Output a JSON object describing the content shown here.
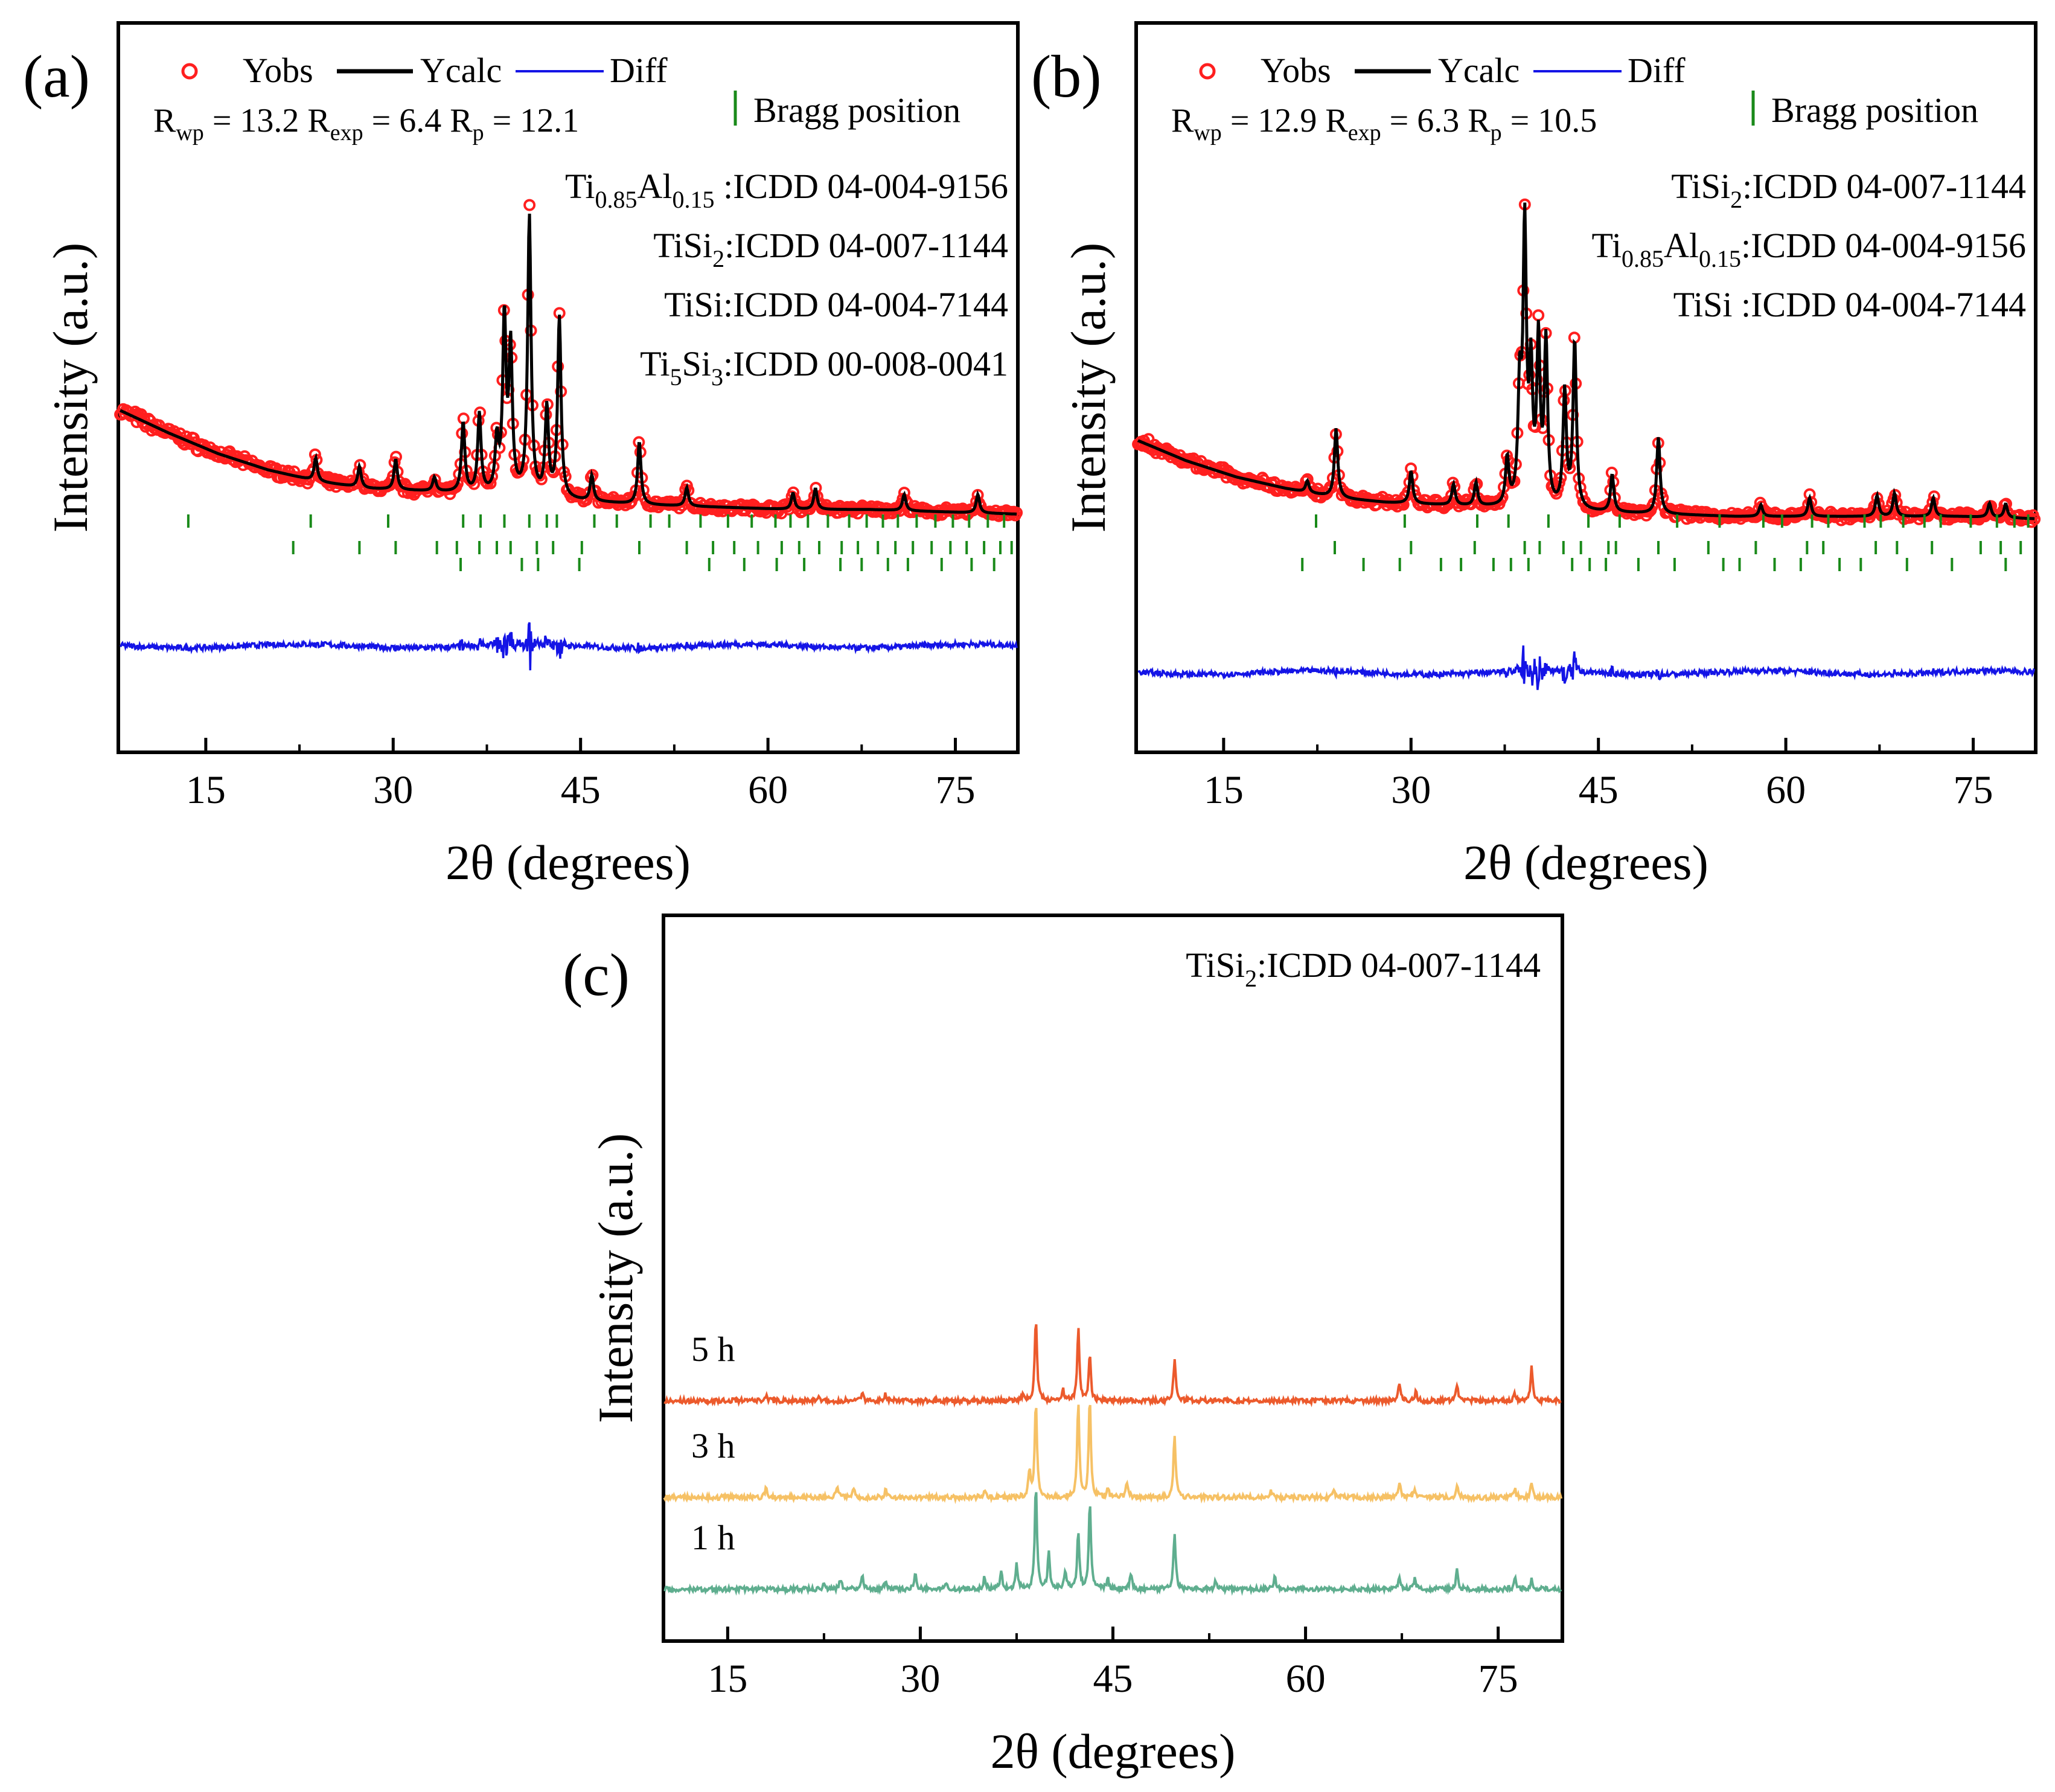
{
  "chart_data": [
    {
      "panel": "(a)",
      "type": "line",
      "legend": {
        "items": [
          "Yobs",
          "Ycalc",
          "Diff"
        ],
        "bragg_label": "Bragg position",
        "placement": "top"
      },
      "colors": {
        "obs": "#ff1f1f",
        "calc": "#000000",
        "diff": "#1414e6",
        "bragg": "#1a8a1a"
      },
      "refinement": {
        "Rwp": "13.2",
        "Rexp": "6.4",
        "Rp": "12.1"
      },
      "phases": [
        {
          "pre": "Ti",
          "sub1": "0.85",
          "mid": "Al",
          "sub2": "0.15",
          "tail": " :ICDD  04-004-9156"
        },
        {
          "pre": "TiSi",
          "sub1": "2",
          "tail": ":ICDD  04-007-1144"
        },
        {
          "pre": "TiSi",
          "tail": ":ICDD  04-004-7144"
        },
        {
          "pre": "Ti",
          "sub1": "5",
          "mid": "Si",
          "sub2": "3",
          "tail": ":ICDD  00-008-0041"
        }
      ],
      "xlabel": "2θ (degrees)",
      "ylabel": "Intensity (a.u.)",
      "xlim": [
        8,
        80
      ],
      "xticks": [
        15,
        30,
        45,
        60,
        75
      ],
      "baseline": {
        "x": [
          8,
          12,
          16,
          20,
          24,
          28,
          32,
          36,
          40,
          44,
          50,
          56,
          62,
          68,
          74,
          80
        ],
        "y": [
          96,
          86,
          77,
          70,
          65,
          62,
          61,
          60,
          59,
          57,
          55,
          54,
          53,
          53,
          52,
          51
        ]
      },
      "peaks": [
        [
          23.8,
          10
        ],
        [
          27.3,
          9
        ],
        [
          30.2,
          13
        ],
        [
          33.3,
          6
        ],
        [
          35.6,
          30
        ],
        [
          36.9,
          34
        ],
        [
          38.3,
          22
        ],
        [
          38.9,
          75
        ],
        [
          39.4,
          62
        ],
        [
          40.9,
          120
        ],
        [
          42.3,
          38
        ],
        [
          43.3,
          78
        ],
        [
          45.9,
          11
        ],
        [
          49.7,
          27
        ],
        [
          53.5,
          8
        ],
        [
          62.0,
          7
        ],
        [
          63.8,
          9
        ],
        [
          70.9,
          7
        ],
        [
          76.8,
          8
        ]
      ],
      "bragg_rows": [
        {
          "x": [
            13.6,
            23.4,
            29.6,
            35.6,
            37.0,
            38.9,
            40.9,
            42.3,
            43.1,
            46.1,
            47.9,
            50.6,
            52.1,
            54.6,
            56.8,
            58.7,
            60.6,
            61.8,
            63.2,
            64.8,
            66.5,
            67.9,
            69.2,
            70.4,
            71.9,
            73.4,
            74.8,
            76.1,
            77.6,
            78.9
          ]
        },
        {
          "x": [
            22.0,
            27.3,
            30.2,
            33.5,
            35.1,
            36.9,
            38.3,
            39.4,
            41.5,
            42.8,
            45.1,
            49.7,
            53.5,
            55.6,
            57.3,
            59.2,
            61.1,
            62.5,
            64.1,
            65.9,
            67.2,
            68.8,
            70.2,
            71.6,
            73.1,
            74.6,
            75.9,
            77.3,
            78.6,
            79.5
          ]
        },
        {
          "x": [
            35.4,
            40.3,
            41.6,
            44.9,
            55.3,
            58.1,
            60.7,
            62.9,
            65.8,
            67.5,
            69.6,
            71.2,
            73.9,
            76.3,
            78.1
          ]
        }
      ]
    },
    {
      "panel": "(b)",
      "type": "line",
      "legend": {
        "items": [
          "Yobs",
          "Ycalc",
          "Diff"
        ],
        "bragg_label": "Bragg position",
        "placement": "top"
      },
      "colors": {
        "obs": "#ff1f1f",
        "calc": "#000000",
        "diff": "#1414e6",
        "bragg": "#1a8a1a"
      },
      "refinement": {
        "Rwp": "12.9",
        "Rexp": "6.3",
        "Rp": "10.5"
      },
      "phases": [
        {
          "pre": "TiSi",
          "sub1": "2",
          "tail": ":ICDD  04-007-1144"
        },
        {
          "pre": "Ti",
          "sub1": "0.85",
          "mid": "Al",
          "sub2": "0.15",
          "tail": ":ICDD 04-004-9156"
        },
        {
          "pre": "TiSi ",
          "tail": ":ICDD  04-004-7144"
        }
      ],
      "xlabel": "2θ (degrees)",
      "ylabel": "Intensity (a.u.)",
      "xlim": [
        8,
        80
      ],
      "xticks": [
        15,
        30,
        45,
        60,
        75
      ],
      "baseline": {
        "x": [
          8,
          12,
          16,
          20,
          24,
          28,
          32,
          36,
          40,
          44,
          50,
          56,
          62,
          68,
          74,
          80
        ],
        "y": [
          83,
          74,
          67,
          62,
          58,
          56,
          55,
          54,
          53,
          52,
          51,
          50,
          50,
          50,
          50,
          49
        ]
      },
      "peaks": [
        [
          21.7,
          5
        ],
        [
          24.0,
          30
        ],
        [
          30.0,
          14
        ],
        [
          33.4,
          9
        ],
        [
          35.2,
          10
        ],
        [
          37.7,
          20
        ],
        [
          38.7,
          48
        ],
        [
          39.1,
          118
        ],
        [
          39.6,
          55
        ],
        [
          40.2,
          70
        ],
        [
          40.8,
          70
        ],
        [
          42.3,
          50
        ],
        [
          43.1,
          72
        ],
        [
          46.1,
          16
        ],
        [
          49.8,
          33
        ],
        [
          58.0,
          5
        ],
        [
          61.9,
          8
        ],
        [
          67.3,
          9
        ],
        [
          68.7,
          10
        ],
        [
          71.8,
          8
        ],
        [
          76.3,
          6
        ],
        [
          77.6,
          6
        ]
      ],
      "bragg_rows": [
        {
          "x": [
            22.4,
            29.5,
            35.3,
            37.8,
            41.0,
            44.2,
            46.7,
            51.3,
            54.7,
            58.2,
            59.7,
            62.1,
            63.4,
            66.3,
            67.6,
            69.4,
            71.1,
            72.4,
            74.8,
            76.9,
            78.3,
            79.4
          ]
        },
        {
          "x": [
            23.9,
            30.0,
            35.1,
            39.1,
            40.3,
            42.2,
            43.6,
            45.8,
            46.4,
            49.8,
            53.8,
            57.6,
            61.7,
            63.0,
            67.2,
            68.9,
            71.7,
            75.6,
            77.2,
            78.8
          ]
        },
        {
          "x": [
            21.3,
            26.2,
            29.1,
            32.4,
            34.0,
            36.6,
            38.0,
            39.4,
            42.9,
            44.3,
            45.6,
            48.2,
            51.1,
            55.0,
            56.3,
            59.1,
            61.2,
            64.3,
            66.0,
            69.7,
            73.3,
            77.6
          ]
        }
      ]
    },
    {
      "panel": "(c)",
      "type": "line",
      "phase": {
        "pre": "TiSi",
        "sub1": "2",
        "tail": ":ICDD  04-007-1144"
      },
      "xlabel": "2θ (degrees)",
      "ylabel": "Intensity (a.u.)",
      "xlim": [
        10,
        80
      ],
      "xticks": [
        15,
        30,
        45,
        60,
        75
      ],
      "series": [
        {
          "name": "1 h",
          "color": "#5fae8f",
          "offset": 0,
          "peaks": [
            [
              22.5,
              10
            ],
            [
              23.8,
              18
            ],
            [
              25.5,
              22
            ],
            [
              27.3,
              15
            ],
            [
              29.6,
              28
            ],
            [
              32.0,
              8
            ],
            [
              35.0,
              20
            ],
            [
              36.3,
              30
            ],
            [
              37.5,
              42
            ],
            [
              39.0,
              175
            ],
            [
              40.0,
              60
            ],
            [
              41.3,
              30
            ],
            [
              42.3,
              95
            ],
            [
              43.2,
              145
            ],
            [
              44.6,
              18
            ],
            [
              46.4,
              25
            ],
            [
              49.8,
              95
            ],
            [
              53.0,
              12
            ],
            [
              57.6,
              22
            ],
            [
              67.3,
              20
            ],
            [
              68.5,
              18
            ],
            [
              71.8,
              32
            ],
            [
              76.3,
              18
            ],
            [
              77.6,
              15
            ]
          ]
        },
        {
          "name": "3 h",
          "color": "#f6c165",
          "offset": 152,
          "peaks": [
            [
              18.0,
              15
            ],
            [
              23.5,
              18
            ],
            [
              24.8,
              14
            ],
            [
              27.3,
              12
            ],
            [
              35.0,
              15
            ],
            [
              38.5,
              45
            ],
            [
              39.0,
              160
            ],
            [
              42.3,
              155
            ],
            [
              43.2,
              165
            ],
            [
              44.6,
              15
            ],
            [
              46.1,
              25
            ],
            [
              49.8,
              105
            ],
            [
              57.3,
              10
            ],
            [
              62.2,
              12
            ],
            [
              67.3,
              25
            ],
            [
              68.5,
              15
            ],
            [
              71.8,
              20
            ],
            [
              76.3,
              14
            ],
            [
              77.6,
              22
            ]
          ]
        },
        {
          "name": "5 h",
          "color": "#ec5a2c",
          "offset": 312,
          "peaks": [
            [
              18.0,
              8
            ],
            [
              22.0,
              8
            ],
            [
              25.5,
              10
            ],
            [
              27.3,
              12
            ],
            [
              38.0,
              12
            ],
            [
              39.0,
              140
            ],
            [
              41.1,
              20
            ],
            [
              42.3,
              120
            ],
            [
              43.2,
              75
            ],
            [
              49.8,
              70
            ],
            [
              67.3,
              28
            ],
            [
              68.6,
              16
            ],
            [
              71.8,
              28
            ],
            [
              76.3,
              12
            ],
            [
              77.6,
              58
            ]
          ]
        }
      ]
    }
  ]
}
